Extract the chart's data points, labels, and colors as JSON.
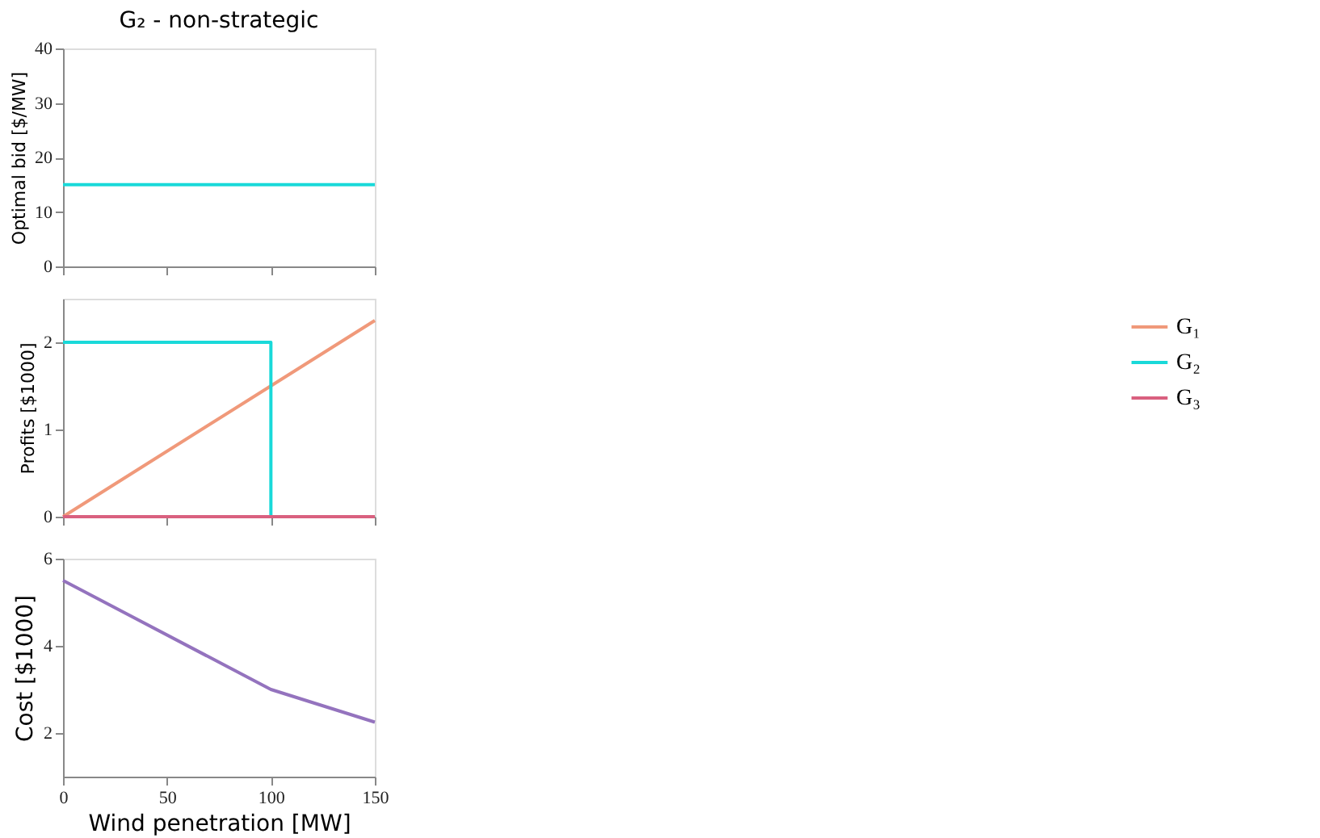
{
  "chart_data": [
    {
      "type": "line",
      "title": "G₂ - non-strategic",
      "ylabel": "Optimal bid [$/MW]",
      "xlim": [
        0,
        150
      ],
      "xticks": [
        0,
        50,
        100,
        150
      ],
      "ylim": [
        0,
        40
      ],
      "yticks": [
        0,
        10,
        20,
        30,
        40
      ],
      "tick_labels": "y",
      "grid": false,
      "legend": false,
      "marker": "none",
      "series": [
        {
          "color": "#19d9d9",
          "x": [
            0,
            150
          ],
          "values": [
            15,
            15
          ]
        }
      ]
    },
    {
      "type": "line",
      "ylabel": "Profits [$1000]",
      "xlim": [
        0,
        150
      ],
      "xticks": [
        0,
        50,
        100,
        150
      ],
      "ylim": [
        0,
        2.5
      ],
      "yticks": [
        0,
        1,
        2
      ],
      "tick_labels": "y",
      "grid": false,
      "legend": "right",
      "marker": "none",
      "series": [
        {
          "name": "G₁",
          "color": "#f0997a",
          "x": [
            0,
            100,
            150
          ],
          "values": [
            0,
            1.5,
            2.25
          ]
        },
        {
          "name": "G₂",
          "color": "#19d9d9",
          "x": [
            0,
            100,
            100,
            150
          ],
          "values": [
            2,
            2,
            0,
            0
          ]
        },
        {
          "name": "G₃",
          "color": "#d9607f",
          "x": [
            0,
            150
          ],
          "values": [
            0,
            0
          ]
        }
      ]
    },
    {
      "type": "line",
      "xlabel": "Wind penetration [MW]",
      "ylabel": "Cost [$1000]",
      "xlim": [
        0,
        150
      ],
      "xticks": [
        0,
        50,
        100,
        150
      ],
      "ylim": [
        1,
        6
      ],
      "yticks": [
        2,
        4,
        6
      ],
      "grid": false,
      "legend": false,
      "marker": "none",
      "series": [
        {
          "color": "#9473be",
          "x": [
            0,
            100,
            150
          ],
          "values": [
            5.5,
            3,
            2.25
          ]
        }
      ]
    }
  ]
}
